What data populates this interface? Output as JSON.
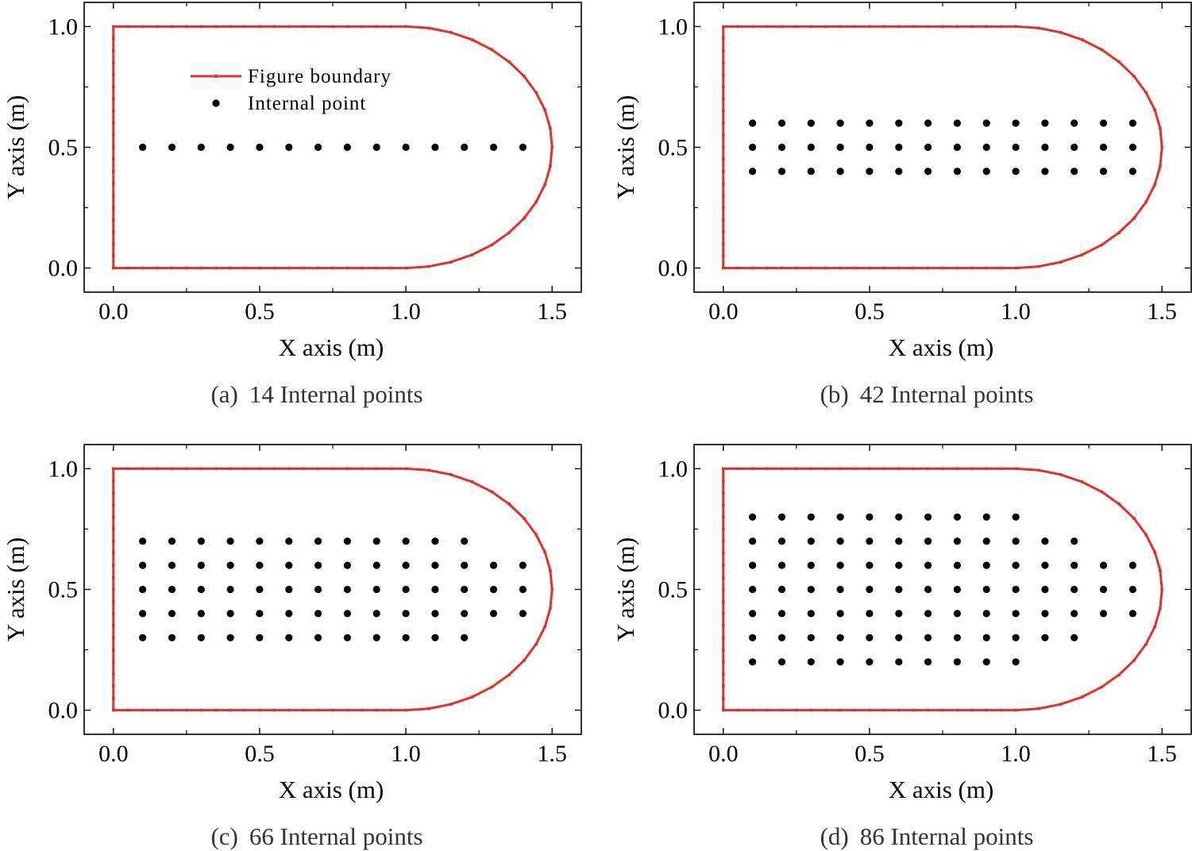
{
  "figure": {
    "legend": {
      "boundary_label": "Figure boundary",
      "point_label": "Internal point"
    },
    "colors": {
      "boundary": "#e0312a",
      "point": "#000000",
      "axes": "#000000"
    }
  },
  "chart_data": [
    {
      "type": "scatter",
      "panel": "a",
      "caption_tag": "(a)",
      "caption_text": "14 Internal points",
      "xlabel": "X axis (m)",
      "ylabel": "Y axis (m)",
      "xlim": [
        -0.1,
        1.6
      ],
      "ylim": [
        -0.1,
        1.1
      ],
      "xticks": [
        "0.0",
        "0.5",
        "1.0",
        "1.5"
      ],
      "yticks": [
        "0.0",
        "0.5",
        "1.0"
      ],
      "show_legend": true,
      "boundary": {
        "description": "straight lines y=0 and y=1 from x=0 to x=1, left edge x=0, semi-ellipse right cap from (1,0) through (1.5,0.5) to (1,1)",
        "x0": 0.0,
        "x_straight_end": 1.0,
        "x_max": 1.5,
        "y_min": 0.0,
        "y_max": 1.0
      },
      "internal_points": [
        {
          "y": 0.5,
          "x_from": 0.1,
          "x_to": 1.4,
          "step": 0.1
        }
      ]
    },
    {
      "type": "scatter",
      "panel": "b",
      "caption_tag": "(b)",
      "caption_text": "42 Internal points",
      "xlabel": "X axis (m)",
      "ylabel": "Y axis (m)",
      "xlim": [
        -0.1,
        1.6
      ],
      "ylim": [
        -0.1,
        1.1
      ],
      "xticks": [
        "0.0",
        "0.5",
        "1.0",
        "1.5"
      ],
      "yticks": [
        "0.0",
        "0.5",
        "1.0"
      ],
      "show_legend": false,
      "boundary": {
        "x0": 0.0,
        "x_straight_end": 1.0,
        "x_max": 1.5,
        "y_min": 0.0,
        "y_max": 1.0
      },
      "internal_points": [
        {
          "y": 0.6,
          "x_from": 0.1,
          "x_to": 1.4,
          "step": 0.1
        },
        {
          "y": 0.5,
          "x_from": 0.1,
          "x_to": 1.4,
          "step": 0.1
        },
        {
          "y": 0.4,
          "x_from": 0.1,
          "x_to": 1.4,
          "step": 0.1
        }
      ]
    },
    {
      "type": "scatter",
      "panel": "c",
      "caption_tag": "(c)",
      "caption_text": "66 Internal points",
      "xlabel": "X axis (m)",
      "ylabel": "Y axis (m)",
      "xlim": [
        -0.1,
        1.6
      ],
      "ylim": [
        -0.1,
        1.1
      ],
      "xticks": [
        "0.0",
        "0.5",
        "1.0",
        "1.5"
      ],
      "yticks": [
        "0.0",
        "0.5",
        "1.0"
      ],
      "show_legend": false,
      "boundary": {
        "x0": 0.0,
        "x_straight_end": 1.0,
        "x_max": 1.5,
        "y_min": 0.0,
        "y_max": 1.0
      },
      "internal_points": [
        {
          "y": 0.7,
          "x_from": 0.1,
          "x_to": 1.2,
          "step": 0.1
        },
        {
          "y": 0.6,
          "x_from": 0.1,
          "x_to": 1.4,
          "step": 0.1
        },
        {
          "y": 0.5,
          "x_from": 0.1,
          "x_to": 1.4,
          "step": 0.1
        },
        {
          "y": 0.4,
          "x_from": 0.1,
          "x_to": 1.4,
          "step": 0.1
        },
        {
          "y": 0.3,
          "x_from": 0.1,
          "x_to": 1.2,
          "step": 0.1
        }
      ]
    },
    {
      "type": "scatter",
      "panel": "d",
      "caption_tag": "(d)",
      "caption_text": "86 Internal points",
      "xlabel": "X axis (m)",
      "ylabel": "Y axis (m)",
      "xlim": [
        -0.1,
        1.6
      ],
      "ylim": [
        -0.1,
        1.1
      ],
      "xticks": [
        "0.0",
        "0.5",
        "1.0",
        "1.5"
      ],
      "yticks": [
        "0.0",
        "0.5",
        "1.0"
      ],
      "show_legend": false,
      "boundary": {
        "x0": 0.0,
        "x_straight_end": 1.0,
        "x_max": 1.5,
        "y_min": 0.0,
        "y_max": 1.0
      },
      "internal_points": [
        {
          "y": 0.8,
          "x_from": 0.1,
          "x_to": 1.0,
          "step": 0.1
        },
        {
          "y": 0.7,
          "x_from": 0.1,
          "x_to": 1.2,
          "step": 0.1
        },
        {
          "y": 0.6,
          "x_from": 0.1,
          "x_to": 1.4,
          "step": 0.1
        },
        {
          "y": 0.5,
          "x_from": 0.1,
          "x_to": 1.4,
          "step": 0.1
        },
        {
          "y": 0.4,
          "x_from": 0.1,
          "x_to": 1.4,
          "step": 0.1
        },
        {
          "y": 0.3,
          "x_from": 0.1,
          "x_to": 1.2,
          "step": 0.1
        },
        {
          "y": 0.2,
          "x_from": 0.1,
          "x_to": 1.0,
          "step": 0.1
        }
      ]
    }
  ]
}
